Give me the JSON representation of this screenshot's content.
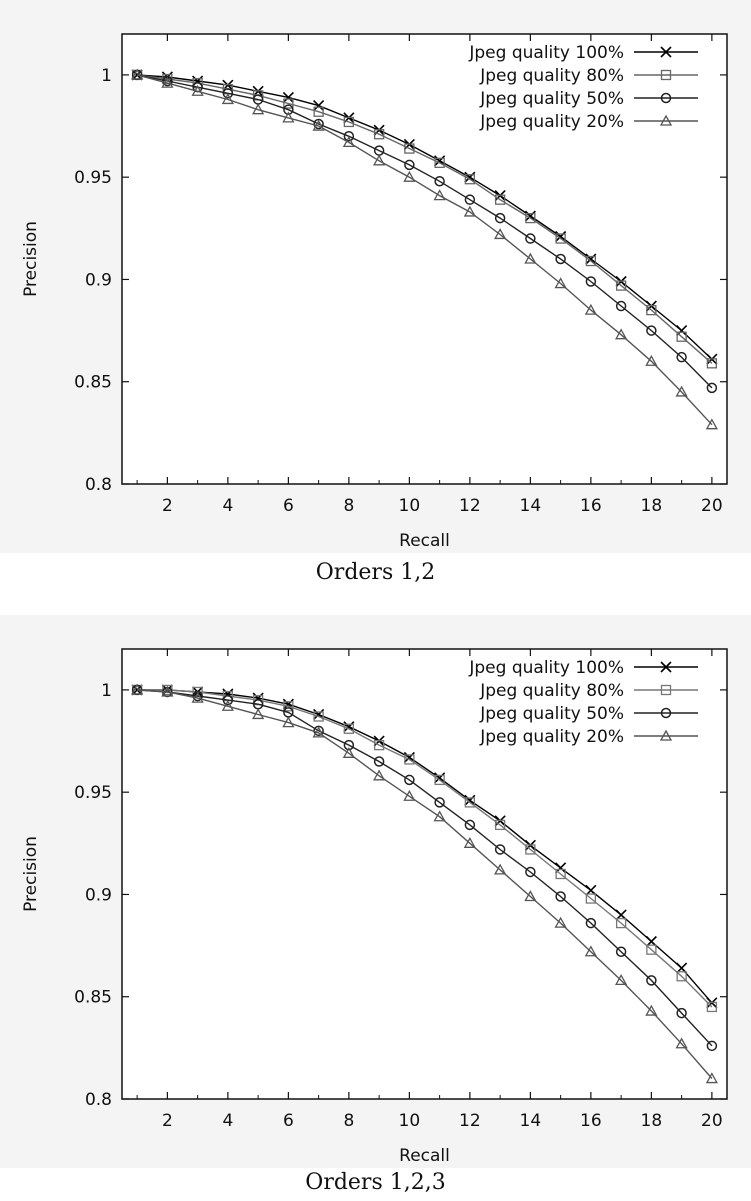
{
  "chart_data": [
    {
      "type": "line",
      "caption": "Orders 1,2",
      "xlabel": "Recall",
      "ylabel": "Precision",
      "xlim": [
        0.5,
        20.5
      ],
      "ylim": [
        0.8,
        1.02
      ],
      "xticks": [
        2,
        4,
        6,
        8,
        10,
        12,
        14,
        16,
        18,
        20
      ],
      "yticks": [
        0.8,
        0.85,
        0.9,
        0.95,
        1
      ],
      "ytick_labels": [
        "0.8",
        "0.85",
        "0.9",
        "0.95",
        "1"
      ],
      "legend_position": "top-right",
      "grid": false,
      "x": [
        1,
        2,
        3,
        4,
        5,
        6,
        7,
        8,
        9,
        10,
        11,
        12,
        13,
        14,
        15,
        16,
        17,
        18,
        19,
        20
      ],
      "series": [
        {
          "name": "Jpeg quality 100%",
          "marker": "cross",
          "color": "#000000",
          "values": [
            1.0,
            0.999,
            0.997,
            0.995,
            0.992,
            0.989,
            0.985,
            0.979,
            0.973,
            0.966,
            0.958,
            0.95,
            0.941,
            0.931,
            0.921,
            0.91,
            0.899,
            0.887,
            0.875,
            0.861
          ]
        },
        {
          "name": "Jpeg quality 80%",
          "marker": "square",
          "color": "#666666",
          "values": [
            1.0,
            0.998,
            0.996,
            0.993,
            0.99,
            0.986,
            0.982,
            0.977,
            0.971,
            0.964,
            0.957,
            0.949,
            0.939,
            0.93,
            0.92,
            0.909,
            0.897,
            0.885,
            0.872,
            0.859
          ]
        },
        {
          "name": "Jpeg quality 50%",
          "marker": "circle",
          "color": "#222222",
          "values": [
            1.0,
            0.997,
            0.994,
            0.991,
            0.988,
            0.983,
            0.976,
            0.97,
            0.963,
            0.956,
            0.948,
            0.939,
            0.93,
            0.92,
            0.91,
            0.899,
            0.887,
            0.875,
            0.862,
            0.847
          ]
        },
        {
          "name": "Jpeg quality 20%",
          "marker": "triangle",
          "color": "#555555",
          "values": [
            1.0,
            0.996,
            0.992,
            0.988,
            0.983,
            0.979,
            0.975,
            0.967,
            0.958,
            0.95,
            0.941,
            0.933,
            0.922,
            0.91,
            0.898,
            0.885,
            0.873,
            0.86,
            0.845,
            0.829
          ]
        }
      ]
    },
    {
      "type": "line",
      "caption": "Orders 1,2,3",
      "xlabel": "Recall",
      "ylabel": "Precision",
      "xlim": [
        0.5,
        20.5
      ],
      "ylim": [
        0.8,
        1.02
      ],
      "xticks": [
        2,
        4,
        6,
        8,
        10,
        12,
        14,
        16,
        18,
        20
      ],
      "yticks": [
        0.8,
        0.85,
        0.9,
        0.95,
        1
      ],
      "ytick_labels": [
        "0.8",
        "0.85",
        "0.9",
        "0.95",
        "1"
      ],
      "legend_position": "top-right",
      "grid": false,
      "x": [
        1,
        2,
        3,
        4,
        5,
        6,
        7,
        8,
        9,
        10,
        11,
        12,
        13,
        14,
        15,
        16,
        17,
        18,
        19,
        20
      ],
      "series": [
        {
          "name": "Jpeg quality 100%",
          "marker": "cross",
          "color": "#000000",
          "values": [
            1.0,
            1.0,
            0.999,
            0.998,
            0.996,
            0.993,
            0.988,
            0.982,
            0.975,
            0.967,
            0.957,
            0.946,
            0.936,
            0.924,
            0.913,
            0.902,
            0.89,
            0.877,
            0.864,
            0.847
          ]
        },
        {
          "name": "Jpeg quality 80%",
          "marker": "square",
          "color": "#777777",
          "values": [
            1.0,
            1.0,
            0.999,
            0.997,
            0.995,
            0.992,
            0.987,
            0.981,
            0.973,
            0.966,
            0.956,
            0.945,
            0.934,
            0.922,
            0.91,
            0.898,
            0.886,
            0.873,
            0.86,
            0.845
          ]
        },
        {
          "name": "Jpeg quality 50%",
          "marker": "circle",
          "color": "#222222",
          "values": [
            1.0,
            0.999,
            0.997,
            0.995,
            0.993,
            0.989,
            0.98,
            0.973,
            0.965,
            0.956,
            0.945,
            0.934,
            0.922,
            0.911,
            0.899,
            0.886,
            0.872,
            0.858,
            0.842,
            0.826
          ]
        },
        {
          "name": "Jpeg quality 20%",
          "marker": "triangle",
          "color": "#555555",
          "values": [
            1.0,
            0.999,
            0.996,
            0.992,
            0.988,
            0.984,
            0.979,
            0.969,
            0.958,
            0.948,
            0.938,
            0.925,
            0.912,
            0.899,
            0.886,
            0.872,
            0.858,
            0.843,
            0.827,
            0.81
          ]
        }
      ]
    }
  ]
}
